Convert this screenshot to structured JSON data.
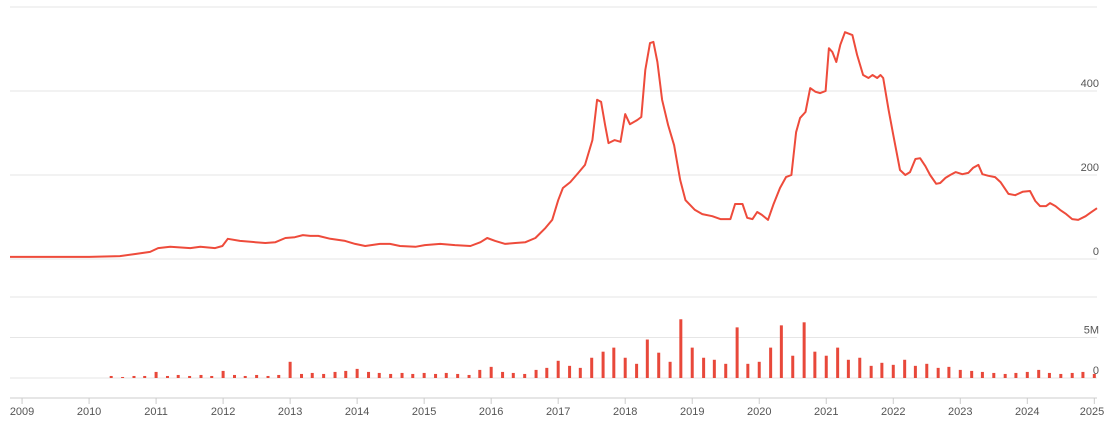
{
  "chart_data": [
    {
      "type": "line",
      "name": "price",
      "color": "#ee4b3b",
      "x": [
        2008.82,
        2009.42,
        2010.0,
        2010.46,
        2010.69,
        2010.91,
        2011.03,
        2011.21,
        2011.51,
        2011.66,
        2011.88,
        2011.99,
        2012.07,
        2012.25,
        2012.48,
        2012.63,
        2012.78,
        2012.93,
        2013.07,
        2013.19,
        2013.3,
        2013.42,
        2013.6,
        2013.82,
        2013.97,
        2014.12,
        2014.34,
        2014.49,
        2014.64,
        2014.87,
        2015.01,
        2015.24,
        2015.46,
        2015.69,
        2015.84,
        2015.94,
        2016.06,
        2016.21,
        2016.36,
        2016.51,
        2016.66,
        2016.81,
        2016.91,
        2017.0,
        2017.07,
        2017.18,
        2017.3,
        2017.4,
        2017.51,
        2017.58,
        2017.64,
        2017.7,
        2017.75,
        2017.84,
        2017.93,
        2018.0,
        2018.07,
        2018.18,
        2018.24,
        2018.3,
        2018.37,
        2018.42,
        2018.48,
        2018.55,
        2018.64,
        2018.73,
        2018.82,
        2018.9,
        2019.04,
        2019.15,
        2019.3,
        2019.42,
        2019.57,
        2019.64,
        2019.75,
        2019.82,
        2019.9,
        2019.97,
        2020.04,
        2020.13,
        2020.21,
        2020.31,
        2020.4,
        2020.48,
        2020.55,
        2020.61,
        2020.69,
        2020.76,
        2020.84,
        2020.91,
        2020.99,
        2021.04,
        2021.09,
        2021.15,
        2021.21,
        2021.28,
        2021.39,
        2021.46,
        2021.55,
        2021.63,
        2021.69,
        2021.76,
        2021.81,
        2021.85,
        2021.93,
        2022.0,
        2022.1,
        2022.18,
        2022.25,
        2022.33,
        2022.4,
        2022.48,
        2022.55,
        2022.64,
        2022.7,
        2022.78,
        2022.85,
        2022.93,
        2023.03,
        2023.12,
        2023.19,
        2023.27,
        2023.33,
        2023.42,
        2023.52,
        2023.6,
        2023.72,
        2023.82,
        2023.93,
        2024.04,
        2024.12,
        2024.19,
        2024.28,
        2024.34,
        2024.42,
        2024.49,
        2024.58,
        2024.67,
        2024.76,
        2024.87,
        2024.94,
        2025.04
      ],
      "values": [
        5,
        5,
        5,
        7,
        12,
        17,
        26,
        29,
        26,
        29,
        26,
        31,
        48,
        43,
        40,
        38,
        40,
        50,
        52,
        57,
        55,
        55,
        48,
        43,
        36,
        31,
        36,
        36,
        31,
        29,
        33,
        36,
        33,
        31,
        40,
        50,
        43,
        36,
        38,
        40,
        50,
        74,
        93,
        140,
        169,
        183,
        205,
        224,
        283,
        379,
        374,
        319,
        276,
        283,
        279,
        345,
        321,
        331,
        338,
        450,
        514,
        517,
        469,
        379,
        319,
        271,
        188,
        140,
        117,
        107,
        102,
        95,
        95,
        131,
        131,
        98,
        95,
        112,
        105,
        93,
        129,
        169,
        195,
        200,
        302,
        336,
        350,
        407,
        398,
        395,
        400,
        502,
        493,
        469,
        510,
        540,
        533,
        486,
        438,
        431,
        438,
        431,
        438,
        431,
        355,
        295,
        212,
        200,
        207,
        238,
        240,
        221,
        200,
        179,
        181,
        193,
        200,
        207,
        202,
        205,
        217,
        224,
        202,
        198,
        195,
        183,
        155,
        152,
        160,
        162,
        138,
        126,
        126,
        133,
        126,
        117,
        107,
        95,
        93,
        102,
        110,
        121
      ],
      "xlim": [
        2008.82,
        2025.04
      ],
      "ylim": [
        0,
        600
      ],
      "yticks": [
        0,
        200,
        400
      ],
      "grid": true
    },
    {
      "type": "bar",
      "name": "volume",
      "color": "#e8483a",
      "x": [
        2010.33,
        2010.5,
        2010.67,
        2010.83,
        2011,
        2011.17,
        2011.33,
        2011.5,
        2011.67,
        2011.83,
        2012,
        2012.17,
        2012.33,
        2012.5,
        2012.67,
        2012.83,
        2013,
        2013.17,
        2013.33,
        2013.5,
        2013.67,
        2013.83,
        2014,
        2014.17,
        2014.33,
        2014.5,
        2014.67,
        2014.83,
        2015,
        2015.17,
        2015.33,
        2015.5,
        2015.67,
        2015.83,
        2016,
        2016.17,
        2016.33,
        2016.5,
        2016.67,
        2016.83,
        2017,
        2017.17,
        2017.33,
        2017.5,
        2017.67,
        2017.83,
        2018,
        2018.17,
        2018.33,
        2018.5,
        2018.67,
        2018.83,
        2019,
        2019.17,
        2019.33,
        2019.5,
        2019.67,
        2019.83,
        2020,
        2020.17,
        2020.33,
        2020.5,
        2020.67,
        2020.83,
        2021,
        2021.17,
        2021.33,
        2021.5,
        2021.67,
        2021.83,
        2022,
        2022.17,
        2022.33,
        2022.5,
        2022.67,
        2022.83,
        2023,
        2023.17,
        2023.33,
        2023.5,
        2023.67,
        2023.83,
        2024,
        2024.17,
        2024.33,
        2024.5,
        2024.67,
        2024.83,
        2025
      ],
      "values": [
        250000,
        125000,
        250000,
        250000,
        750000,
        250000,
        375000,
        250000,
        375000,
        250000,
        875000,
        375000,
        250000,
        375000,
        250000,
        375000,
        2000000,
        500000,
        625000,
        500000,
        750000,
        875000,
        1125000,
        750000,
        625000,
        500000,
        625000,
        500000,
        625000,
        500000,
        625000,
        500000,
        375000,
        1000000,
        1375000,
        750000,
        625000,
        500000,
        1000000,
        1250000,
        2125000,
        1500000,
        1250000,
        2500000,
        3250000,
        3750000,
        2500000,
        1750000,
        4750000,
        3125000,
        2000000,
        7250000,
        3750000,
        2500000,
        2250000,
        1750000,
        6250000,
        1750000,
        2000000,
        3750000,
        6500000,
        2750000,
        6875000,
        3250000,
        2750000,
        3750000,
        2250000,
        2500000,
        1500000,
        1875000,
        1625000,
        2250000,
        1500000,
        1750000,
        1250000,
        1375000,
        1000000,
        875000,
        750000,
        625000,
        500000,
        625000,
        750000,
        1000000,
        625000,
        500000,
        625000,
        750000,
        500000
      ],
      "xlim": [
        2008.82,
        2025.04
      ],
      "ylim": [
        0,
        10000000
      ],
      "yticks": [
        0,
        {
          "value": 5000000,
          "label": "5M"
        }
      ],
      "grid": true,
      "xticks": [
        2009,
        2010,
        2011,
        2012,
        2013,
        2014,
        2015,
        2016,
        2017,
        2018,
        2019,
        2020,
        2021,
        2022,
        2023,
        2024,
        2025
      ]
    }
  ]
}
